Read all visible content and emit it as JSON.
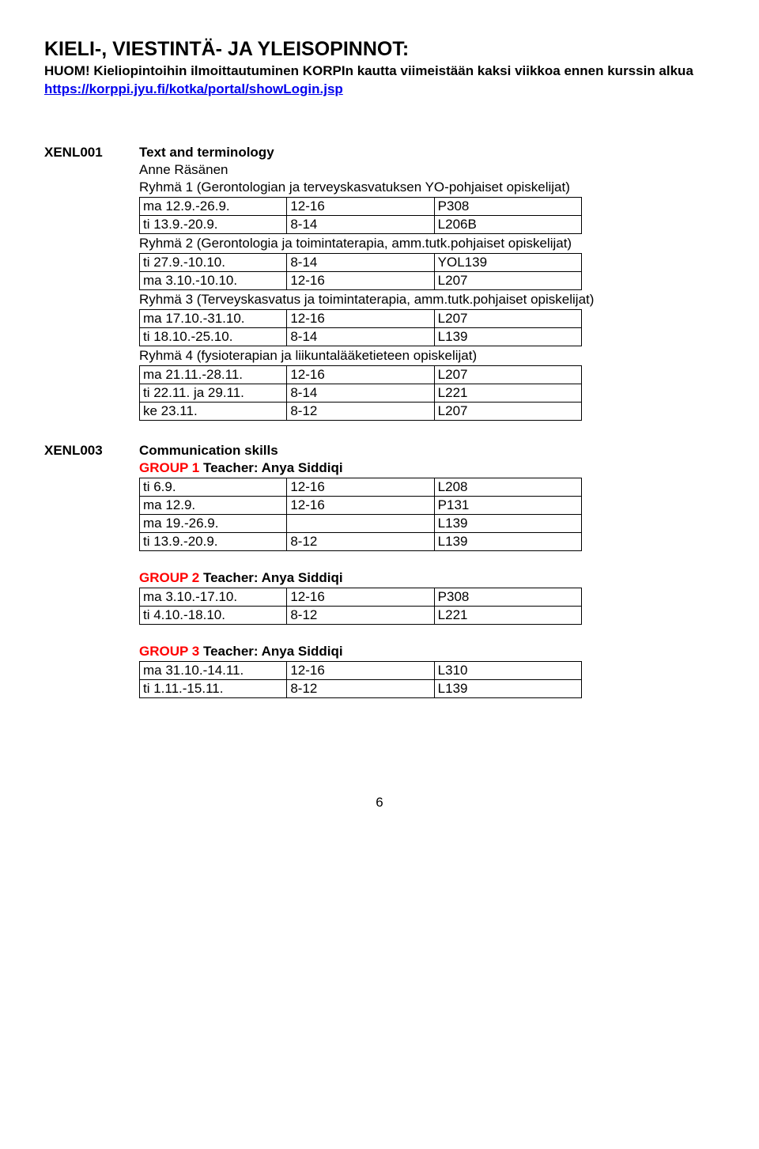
{
  "heading": "KIELI-, VIESTINTÄ- JA YLEISOPINNOT:",
  "subheading_prefix": "HUOM! Kieliopintoihin ilmoittautuminen KORPIn kautta viimeistään kaksi viikkoa ennen kurssin alkua ",
  "subheading_link": "https://korppi.jyu.fi/kotka/portal/showLogin.jsp",
  "course1": {
    "code": "XENL001",
    "title": "Text and terminology",
    "teacher": "Anne Räsänen",
    "group1_label": "Ryhmä 1 (Gerontologian ja terveyskasvatuksen YO-pohjaiset opiskelijat)",
    "group1_rows": [
      [
        "ma 12.9.-26.9.",
        "12-16",
        "P308"
      ],
      [
        "ti 13.9.-20.9.",
        "8-14",
        "L206B"
      ]
    ],
    "group2_label": "Ryhmä 2 (Gerontologia ja toimintaterapia, amm.tutk.pohjaiset opiskelijat)",
    "group2_rows": [
      [
        "ti 27.9.-10.10.",
        "8-14",
        "YOL139"
      ],
      [
        "ma 3.10.-10.10.",
        "12-16",
        "L207"
      ]
    ],
    "group3_label": "Ryhmä 3 (Terveyskasvatus ja toimintaterapia, amm.tutk.pohjaiset opiskelijat)",
    "group3_rows": [
      [
        "ma 17.10.-31.10.",
        "12-16",
        "L207"
      ],
      [
        "ti 18.10.-25.10.",
        "8-14",
        "L139"
      ]
    ],
    "group4_label": "Ryhmä 4 (fysioterapian ja liikuntalääketieteen opiskelijat)",
    "group4_rows": [
      [
        "ma 21.11.-28.11.",
        "12-16",
        "L207"
      ],
      [
        "ti 22.11. ja 29.11.",
        "8-14",
        "L221"
      ],
      [
        "ke 23.11.",
        "8-12",
        "L207"
      ]
    ]
  },
  "course2": {
    "code": "XENL003",
    "title": "Communication skills",
    "group1_label_red": "GROUP 1",
    "group1_label_rest": " Teacher: Anya Siddiqi",
    "group1_rows": [
      [
        "ti 6.9.",
        "12-16",
        "L208"
      ],
      [
        "ma 12.9.",
        "12-16",
        "P131"
      ],
      [
        "ma 19.-26.9.",
        "",
        "L139"
      ],
      [
        "ti 13.9.-20.9.",
        "8-12",
        "L139"
      ]
    ],
    "group2_label_red": "GROUP 2",
    "group2_label_rest": " Teacher: Anya Siddiqi",
    "group2_rows": [
      [
        "ma 3.10.-17.10.",
        "12-16",
        "P308"
      ],
      [
        "ti 4.10.-18.10.",
        "8-12",
        "L221"
      ]
    ],
    "group3_label_red": "GROUP 3",
    "group3_label_rest": " Teacher: Anya Siddiqi",
    "group3_rows": [
      [
        "ma 31.10.-14.11.",
        "12-16",
        "L310"
      ],
      [
        "ti 1.11.-15.11.",
        "8-12",
        "L139"
      ]
    ]
  },
  "page_number": "6"
}
